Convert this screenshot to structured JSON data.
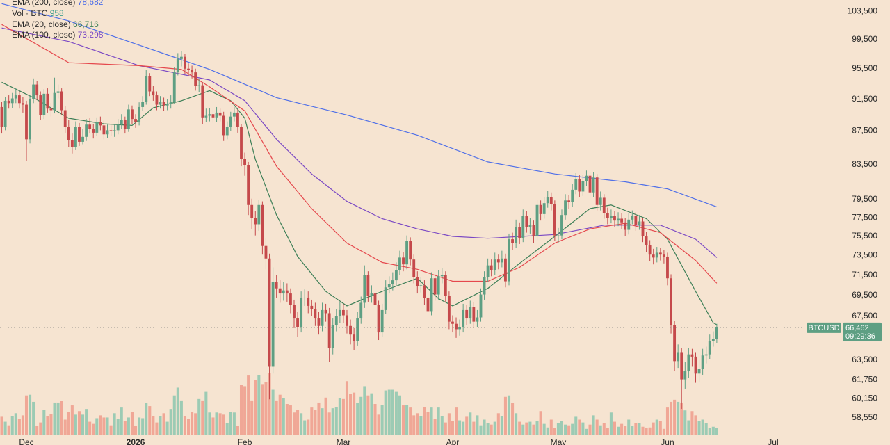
{
  "chart_data": {
    "type": "candlestick",
    "log": true,
    "candle_colors": {
      "up": "#5e9f83",
      "down": "#c5494b"
    },
    "volume_colors": {
      "up": "#9ccbb4",
      "down": "#f0a796"
    },
    "xlim": [
      -0.5,
      227.5
    ],
    "xticks": [
      {
        "value": 7,
        "label": "Dec"
      },
      {
        "value": 38,
        "label": "2026"
      },
      {
        "value": 69,
        "label": "Feb"
      },
      {
        "value": 97,
        "label": "Mar"
      },
      {
        "value": 128,
        "label": "Apr"
      },
      {
        "value": 158,
        "label": "May"
      },
      {
        "value": 189,
        "label": "Jun"
      },
      {
        "value": 219,
        "label": "Jul"
      }
    ],
    "ylim": [
      57200,
      105140
    ],
    "yticks": [
      {
        "value": 103500,
        "label": "103,500"
      },
      {
        "value": 99500,
        "label": "99,500"
      },
      {
        "value": 95500,
        "label": "95,500"
      },
      {
        "value": 91500,
        "label": "91,500"
      },
      {
        "value": 87500,
        "label": "87,500"
      },
      {
        "value": 83500,
        "label": "83,500"
      },
      {
        "value": 79500,
        "label": "79,500"
      },
      {
        "value": 77500,
        "label": "77,500"
      },
      {
        "value": 75500,
        "label": "75,500"
      },
      {
        "value": 73500,
        "label": "73,500"
      },
      {
        "value": 71500,
        "label": "71,500"
      },
      {
        "value": 69500,
        "label": "69,500"
      },
      {
        "value": 67500,
        "label": "67,500"
      },
      {
        "value": 63500,
        "label": "63,500"
      },
      {
        "value": 61750,
        "label": "61,750"
      },
      {
        "value": 60150,
        "label": "60,150"
      },
      {
        "value": 58550,
        "label": "58,550"
      }
    ],
    "open": [
      90500,
      88000,
      91300,
      91000,
      91600,
      92000,
      91000,
      90800,
      86500,
      91500,
      93400,
      92000,
      89500,
      92200,
      90300,
      90100,
      92300,
      92500,
      90100,
      88000,
      86400,
      85600,
      88000,
      86200,
      86800,
      88300,
      87800,
      87300,
      88600,
      88200,
      87100,
      87600,
      87500,
      87600,
      88300,
      88900,
      87800,
      90200,
      89000,
      88600,
      90500,
      91200,
      94500,
      92500,
      92000,
      90800,
      91200,
      90700,
      90900,
      91200,
      95000,
      96800,
      97100,
      95500,
      95300,
      95000,
      93200,
      93300,
      89200,
      89400,
      89600,
      89200,
      89800,
      89400,
      87000,
      88000,
      89300,
      89800,
      88000,
      84200,
      83400,
      78900,
      77500,
      76800,
      78900,
      74500,
      73200,
      62900,
      70800,
      70200,
      69700,
      70000,
      69700,
      68600,
      67300,
      66500,
      69300,
      69300,
      68500,
      68200,
      67300,
      66600,
      68100,
      67800,
      64600,
      66700,
      67500,
      68100,
      67600,
      66600,
      65800,
      65200,
      67300,
      68800,
      71500,
      69500,
      69700,
      68600,
      66000,
      68100,
      70300,
      70600,
      71000,
      72000,
      73300,
      72600,
      75000,
      73100,
      71300,
      70400,
      70500,
      69300,
      68000,
      71200,
      69600,
      71400,
      71500,
      69500,
      67000,
      66800,
      66300,
      66500,
      68100,
      67300,
      68400,
      67000,
      67400,
      69600,
      71300,
      72500,
      72000,
      73100,
      72800,
      73200,
      70900,
      75200,
      74800,
      76500,
      75300,
      77700,
      76500,
      76700,
      75500,
      78900,
      77900,
      79100,
      79800,
      79000,
      75600,
      75600,
      77800,
      79400,
      79200,
      80600,
      81800,
      80400,
      81600,
      82200,
      80300,
      82000,
      78900,
      79700,
      78000,
      77500,
      77700,
      77200,
      77400,
      77000,
      76200,
      77300,
      77700,
      76700,
      77100,
      75500,
      74600,
      73600,
      73300,
      73800,
      73600,
      73400,
      71200,
      66700,
      63400,
      64200,
      61800,
      62500,
      64000,
      63800,
      62300,
      62700,
      63900,
      64000,
      65200,
      65400
    ],
    "high": [
      91200,
      91800,
      92000,
      92300,
      92900,
      92500,
      91800,
      91300,
      92000,
      94200,
      93900,
      92500,
      92800,
      92900,
      91000,
      94300,
      93400,
      92900,
      90600,
      88900,
      87200,
      88700,
      88500,
      87800,
      89000,
      89100,
      88400,
      89200,
      89300,
      88800,
      88300,
      88200,
      88300,
      89000,
      89600,
      89300,
      90800,
      90700,
      89600,
      91100,
      91900,
      95300,
      94900,
      93200,
      92500,
      91900,
      91700,
      91500,
      92000,
      95700,
      97600,
      97900,
      97500,
      96200,
      95900,
      95500,
      94100,
      93700,
      90300,
      90400,
      90200,
      90500,
      90300,
      89900,
      88700,
      89900,
      90500,
      90200,
      88400,
      84900,
      83800,
      79600,
      78200,
      79500,
      79300,
      75300,
      73700,
      72300,
      71500,
      71000,
      70800,
      70700,
      70200,
      69100,
      67900,
      69900,
      70100,
      69900,
      69100,
      68800,
      67900,
      68800,
      68700,
      68300,
      67300,
      68200,
      68900,
      68700,
      68100,
      67200,
      66400,
      67900,
      69400,
      72500,
      71900,
      70500,
      70200,
      69000,
      68700,
      71000,
      71400,
      71800,
      72800,
      74000,
      73900,
      75600,
      75400,
      73600,
      71900,
      71300,
      71000,
      69800,
      71800,
      71600,
      72000,
      72200,
      71900,
      69900,
      67600,
      67400,
      67200,
      68700,
      68600,
      69000,
      68900,
      68100,
      70200,
      71900,
      73200,
      73100,
      73800,
      73600,
      74000,
      73700,
      75800,
      75900,
      77300,
      77000,
      78400,
      78200,
      77500,
      77200,
      79500,
      79400,
      79800,
      80500,
      80300,
      79400,
      76400,
      78400,
      80100,
      80000,
      81300,
      82500,
      82300,
      82300,
      82800,
      82600,
      82600,
      82400,
      80400,
      80100,
      78600,
      78400,
      78200,
      78100,
      78000,
      77500,
      78000,
      78300,
      78100,
      77800,
      77500,
      76000,
      75100,
      74200,
      74400,
      74300,
      74100,
      73800,
      71600,
      67100,
      64900,
      64600,
      63300,
      64600,
      64500,
      64200,
      63500,
      64500,
      64700,
      65800,
      66100,
      66800
    ],
    "low": [
      87200,
      87600,
      90300,
      90400,
      91000,
      90300,
      89800,
      83900,
      86000,
      91000,
      91400,
      88900,
      89000,
      89800,
      89300,
      89700,
      91600,
      89500,
      87300,
      85600,
      84800,
      85200,
      85700,
      85900,
      86300,
      87200,
      86600,
      86900,
      87600,
      86500,
      86700,
      86900,
      86800,
      87100,
      87800,
      87200,
      87400,
      88400,
      87900,
      88200,
      90000,
      90800,
      91900,
      91300,
      90100,
      90300,
      90000,
      90100,
      90300,
      90900,
      94600,
      95800,
      94800,
      94500,
      94200,
      92600,
      92400,
      88400,
      88600,
      88700,
      88500,
      88600,
      88700,
      86300,
      86500,
      87500,
      88700,
      87300,
      83300,
      82200,
      77800,
      76300,
      75600,
      76100,
      73600,
      72100,
      60100,
      62300,
      69300,
      68800,
      69000,
      68900,
      67800,
      66400,
      65600,
      66000,
      68500,
      67800,
      67500,
      66600,
      65800,
      66100,
      67000,
      63300,
      64000,
      66100,
      66900,
      66900,
      65900,
      64900,
      64400,
      64800,
      66800,
      68300,
      68900,
      68800,
      67900,
      65300,
      65600,
      67700,
      69700,
      70000,
      70500,
      71500,
      71900,
      72100,
      72500,
      70700,
      69700,
      69800,
      68600,
      67400,
      67600,
      69000,
      69100,
      70700,
      68900,
      66300,
      66000,
      65500,
      65700,
      66000,
      66700,
      66800,
      66400,
      66500,
      67000,
      69100,
      70800,
      71400,
      71500,
      72100,
      72300,
      70300,
      70500,
      74100,
      74300,
      74700,
      74900,
      75900,
      75800,
      74800,
      75100,
      77200,
      77400,
      78600,
      78300,
      75000,
      74800,
      75200,
      77300,
      78500,
      78700,
      80100,
      79800,
      79900,
      81000,
      79700,
      79800,
      78300,
      78300,
      77400,
      76800,
      76900,
      76500,
      76600,
      76300,
      75500,
      75700,
      76800,
      76100,
      76200,
      74900,
      73900,
      72900,
      72600,
      72800,
      73000,
      72700,
      70500,
      65900,
      62500,
      62800,
      59300,
      61000,
      61900,
      62900,
      61500,
      61600,
      62200,
      63200,
      63600,
      64700,
      65000
    ],
    "close": [
      88000,
      91300,
      91000,
      91600,
      92000,
      91000,
      90800,
      86500,
      91500,
      93400,
      92000,
      89500,
      92200,
      90300,
      90100,
      92300,
      92500,
      90100,
      88000,
      86400,
      85600,
      88000,
      86200,
      86800,
      88300,
      87800,
      87300,
      88600,
      88200,
      87100,
      87600,
      87500,
      87600,
      88300,
      88900,
      87800,
      90200,
      89000,
      88600,
      90500,
      91200,
      94500,
      92500,
      92000,
      90800,
      91200,
      90700,
      90900,
      91200,
      95000,
      96800,
      97100,
      95500,
      95300,
      95000,
      93200,
      93300,
      89200,
      89400,
      89600,
      89200,
      89800,
      89400,
      87000,
      88000,
      89300,
      89800,
      88000,
      84200,
      83400,
      78900,
      77500,
      76800,
      78900,
      74500,
      73200,
      62900,
      70800,
      70200,
      69700,
      70000,
      69700,
      68600,
      67300,
      66500,
      69300,
      69300,
      68500,
      68200,
      67300,
      66600,
      68100,
      67800,
      64600,
      66700,
      67500,
      68100,
      67600,
      66600,
      65800,
      65200,
      67300,
      68800,
      71500,
      69500,
      69700,
      68600,
      66000,
      68100,
      70300,
      70600,
      71000,
      72000,
      73300,
      72600,
      75000,
      73100,
      71300,
      70400,
      70500,
      69300,
      68000,
      71200,
      69600,
      71400,
      71500,
      69500,
      67000,
      66800,
      66300,
      66500,
      68100,
      67300,
      68400,
      67000,
      67400,
      69600,
      71300,
      72500,
      72000,
      73100,
      72800,
      73200,
      70900,
      75200,
      74800,
      76500,
      75300,
      77700,
      76500,
      76700,
      75500,
      78900,
      77900,
      79100,
      79800,
      79000,
      75600,
      75600,
      77800,
      79400,
      79200,
      80600,
      81800,
      80400,
      81600,
      82200,
      80300,
      82000,
      78900,
      79700,
      78000,
      77500,
      77700,
      77200,
      77400,
      77000,
      76200,
      77300,
      77700,
      76700,
      77100,
      75500,
      74600,
      73600,
      73300,
      73800,
      73600,
      73400,
      71200,
      66700,
      63400,
      64200,
      61800,
      62500,
      64000,
      63800,
      62300,
      62700,
      63900,
      64000,
      65200,
      65400,
      66462
    ],
    "volume": {
      "name": "Vol · BTC",
      "color": "#3a9c8c",
      "last_label": "958",
      "values": [
        2500,
        1800,
        1300,
        2600,
        3000,
        2200,
        2700,
        5500,
        5600,
        4600,
        1200,
        1700,
        3500,
        2600,
        2900,
        4500,
        4500,
        4700,
        2100,
        3200,
        4100,
        2800,
        3300,
        2800,
        3600,
        1800,
        1500,
        2300,
        2700,
        2400,
        2400,
        1300,
        3000,
        2200,
        3800,
        1900,
        2400,
        3200,
        1200,
        2400,
        2300,
        4400,
        4000,
        2600,
        1700,
        2600,
        3000,
        1800,
        3600,
        5500,
        6600,
        4800,
        2600,
        2200,
        3200,
        3000,
        5000,
        4800,
        6000,
        3100,
        2400,
        3100,
        3000,
        2800,
        1600,
        3200,
        3100,
        1200,
        7000,
        6800,
        8300,
        4800,
        7700,
        8400,
        7100,
        7400,
        8600,
        6300,
        4800,
        5600,
        5100,
        4300,
        4100,
        3100,
        3500,
        3000,
        2000,
        2100,
        3800,
        3500,
        4500,
        3700,
        5200,
        3100,
        3700,
        3900,
        5100,
        5000,
        7500,
        5700,
        5900,
        4400,
        5300,
        6800,
        5500,
        5800,
        4300,
        2800,
        4200,
        6200,
        6300,
        6300,
        6000,
        5500,
        4100,
        4200,
        3800,
        2700,
        3000,
        2600,
        3900,
        3200,
        3800,
        2200,
        3800,
        2600,
        1700,
        3000,
        1900,
        3800,
        2000,
        1800,
        2500,
        3100,
        1800,
        2700,
        1300,
        2100,
        1600,
        1400,
        1800,
        3000,
        2600,
        5300,
        5500,
        4400,
        3000,
        1800,
        1400,
        1700,
        1800,
        1400,
        1900,
        3300,
        1500,
        1000,
        2100,
        900,
        1600,
        1900,
        1400,
        1300,
        1500,
        2500,
        2100,
        1700,
        800,
        1400,
        2700,
        2100,
        1300,
        1600,
        900,
        3100,
        1800,
        1100,
        1500,
        1200,
        2100,
        1200,
        1600,
        1600,
        1100,
        900,
        1000,
        1700,
        2100,
        1900,
        800,
        3800,
        4600,
        4900,
        4600,
        4500,
        3400,
        2000,
        3300,
        2700,
        1900,
        2100,
        1600,
        900,
        1100,
        958
      ]
    },
    "series": [
      {
        "name": "EMA (200, close)",
        "color": "#4f6fe8",
        "last_label": "78,682",
        "x": [
          0,
          19,
          39,
          59,
          78,
          98,
          118,
          138,
          157,
          177,
          189,
          203
        ],
        "values": [
          104600,
          102100,
          98700,
          95400,
          91700,
          89500,
          87000,
          83800,
          82400,
          81500,
          80700,
          78682
        ]
      },
      {
        "name": "EMA (20, close)",
        "color": "#3d7f57",
        "last_label": "66,716",
        "x": [
          0,
          9,
          19,
          29,
          37,
          43,
          51,
          59,
          65,
          69,
          72,
          78,
          84,
          92,
          98,
          108,
          118,
          124,
          128,
          138,
          147,
          157,
          167,
          173,
          183,
          189,
          197,
          202,
          203
        ],
        "values": [
          93700,
          91700,
          89100,
          88400,
          88200,
          90400,
          91300,
          92600,
          91300,
          89100,
          84100,
          77800,
          73400,
          69900,
          68500,
          69900,
          71200,
          69200,
          68500,
          70200,
          72700,
          75500,
          78500,
          78900,
          77400,
          75200,
          69900,
          66900,
          66716
        ]
      },
      {
        "name": "EMA (100, close)",
        "color": "#7a48c4",
        "last_label": "73,298",
        "x": [
          0,
          19,
          39,
          59,
          69,
          78,
          88,
          98,
          108,
          118,
          128,
          138,
          157,
          171,
          187,
          197,
          203
        ],
        "values": [
          101100,
          99200,
          95900,
          94000,
          91300,
          86500,
          82400,
          79300,
          77400,
          76300,
          75500,
          75300,
          75700,
          76700,
          76700,
          75200,
          73298
        ]
      },
      {
        "color": "#e5484d",
        "x": [
          0,
          19,
          39,
          51,
          59,
          69,
          78,
          88,
          98,
          108,
          118,
          128,
          138,
          147,
          157,
          167,
          177,
          187,
          197,
          203
        ],
        "values": [
          101600,
          96300,
          95900,
          95400,
          93100,
          90000,
          83300,
          78500,
          74800,
          72800,
          72100,
          70900,
          70900,
          72300,
          74800,
          76300,
          76900,
          75900,
          73000,
          70700
        ]
      }
    ],
    "price_tag": {
      "symbol": "BTCUSD",
      "value": 66462,
      "label": "66,462",
      "countdown": "09:29:36",
      "color": "#5e9f83"
    }
  }
}
